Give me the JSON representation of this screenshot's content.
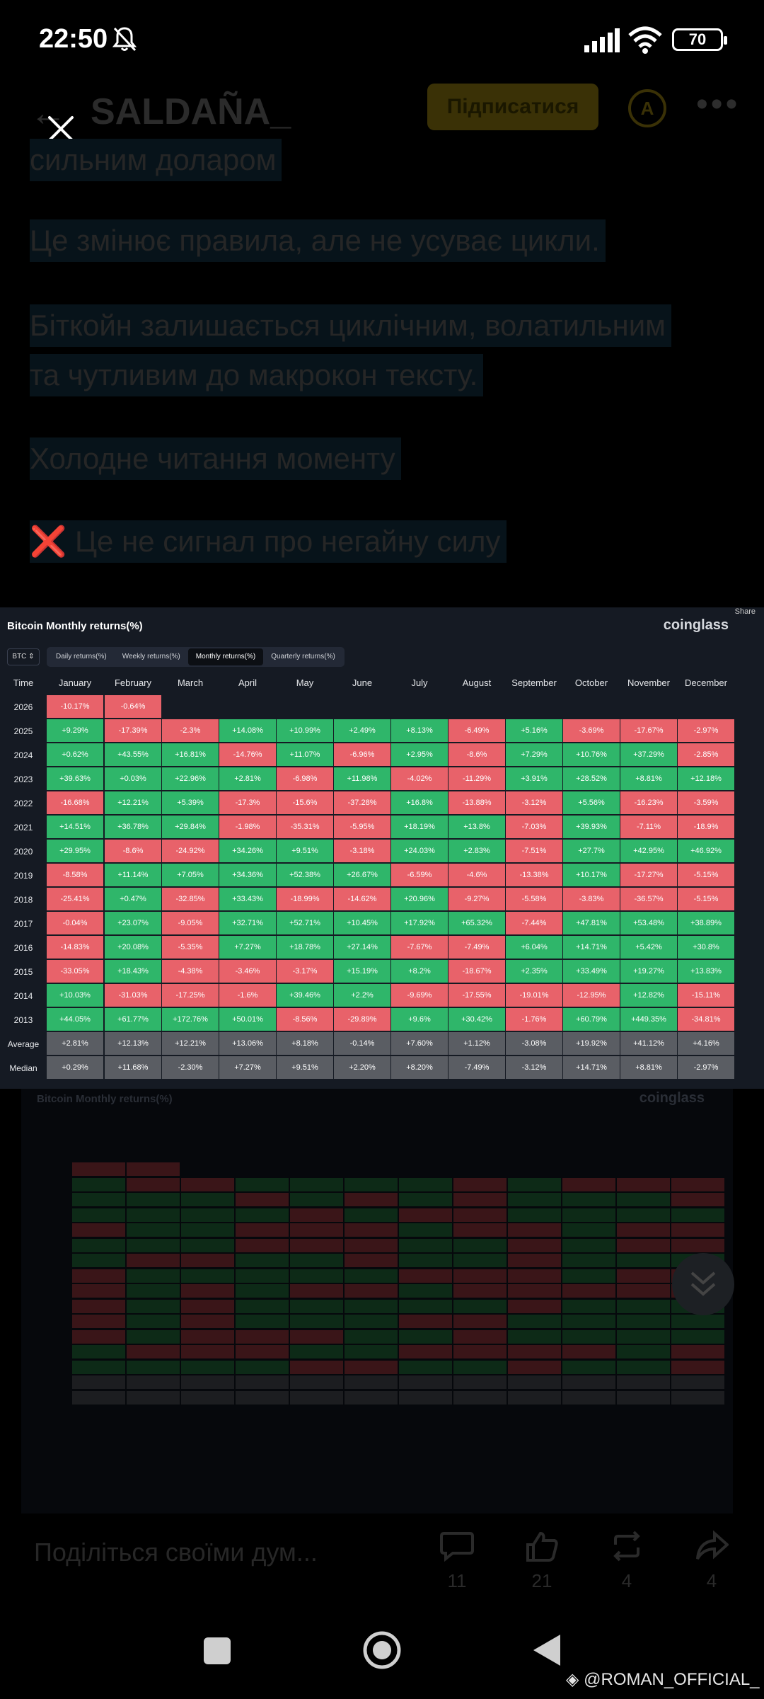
{
  "status": {
    "time": "22:50",
    "battery": "70"
  },
  "header": {
    "author": "SALDAÑA_",
    "subscribe_label": "Підписатися"
  },
  "article_lines": [
    "сильним доларом",
    "Це змінює правила, але не усуває цикли.",
    "Біткойн залишається циклічним, волатильним",
    "та чутливим до макрокон тексту.",
    "Холодне читання моменту",
    "❌ Це не сигнал про негайну силу"
  ],
  "table": {
    "share_label": "Share",
    "title": "Bitcoin Monthly returns(%)",
    "logo": "coinglass",
    "asset": "BTC",
    "tabs": [
      {
        "label": "Daily returns(%)",
        "active": false
      },
      {
        "label": "Weekly returns(%)",
        "active": false
      },
      {
        "label": "Monthly returns(%)",
        "active": true
      },
      {
        "label": "Quarterly returns(%)",
        "active": false
      }
    ],
    "columns": [
      "Time",
      "January",
      "February",
      "March",
      "April",
      "May",
      "June",
      "July",
      "August",
      "September",
      "October",
      "November",
      "December"
    ],
    "rows": [
      {
        "label": "2026",
        "values": [
          "-10.17%",
          "-0.64%"
        ]
      },
      {
        "label": "2025",
        "values": [
          "+9.29%",
          "-17.39%",
          "-2.3%",
          "+14.08%",
          "+10.99%",
          "+2.49%",
          "+8.13%",
          "-6.49%",
          "+5.16%",
          "-3.69%",
          "-17.67%",
          "-2.97%"
        ]
      },
      {
        "label": "2024",
        "values": [
          "+0.62%",
          "+43.55%",
          "+16.81%",
          "-14.76%",
          "+11.07%",
          "-6.96%",
          "+2.95%",
          "-8.6%",
          "+7.29%",
          "+10.76%",
          "+37.29%",
          "-2.85%"
        ]
      },
      {
        "label": "2023",
        "values": [
          "+39.63%",
          "+0.03%",
          "+22.96%",
          "+2.81%",
          "-6.98%",
          "+11.98%",
          "-4.02%",
          "-11.29%",
          "+3.91%",
          "+28.52%",
          "+8.81%",
          "+12.18%"
        ]
      },
      {
        "label": "2022",
        "values": [
          "-16.68%",
          "+12.21%",
          "+5.39%",
          "-17.3%",
          "-15.6%",
          "-37.28%",
          "+16.8%",
          "-13.88%",
          "-3.12%",
          "+5.56%",
          "-16.23%",
          "-3.59%"
        ]
      },
      {
        "label": "2021",
        "values": [
          "+14.51%",
          "+36.78%",
          "+29.84%",
          "-1.98%",
          "-35.31%",
          "-5.95%",
          "+18.19%",
          "+13.8%",
          "-7.03%",
          "+39.93%",
          "-7.11%",
          "-18.9%"
        ]
      },
      {
        "label": "2020",
        "values": [
          "+29.95%",
          "-8.6%",
          "-24.92%",
          "+34.26%",
          "+9.51%",
          "-3.18%",
          "+24.03%",
          "+2.83%",
          "-7.51%",
          "+27.7%",
          "+42.95%",
          "+46.92%"
        ]
      },
      {
        "label": "2019",
        "values": [
          "-8.58%",
          "+11.14%",
          "+7.05%",
          "+34.36%",
          "+52.38%",
          "+26.67%",
          "-6.59%",
          "-4.6%",
          "-13.38%",
          "+10.17%",
          "-17.27%",
          "-5.15%"
        ]
      },
      {
        "label": "2018",
        "values": [
          "-25.41%",
          "+0.47%",
          "-32.85%",
          "+33.43%",
          "-18.99%",
          "-14.62%",
          "+20.96%",
          "-9.27%",
          "-5.58%",
          "-3.83%",
          "-36.57%",
          "-5.15%"
        ]
      },
      {
        "label": "2017",
        "values": [
          "-0.04%",
          "+23.07%",
          "-9.05%",
          "+32.71%",
          "+52.71%",
          "+10.45%",
          "+17.92%",
          "+65.32%",
          "-7.44%",
          "+47.81%",
          "+53.48%",
          "+38.89%"
        ]
      },
      {
        "label": "2016",
        "values": [
          "-14.83%",
          "+20.08%",
          "-5.35%",
          "+7.27%",
          "+18.78%",
          "+27.14%",
          "-7.67%",
          "-7.49%",
          "+6.04%",
          "+14.71%",
          "+5.42%",
          "+30.8%"
        ]
      },
      {
        "label": "2015",
        "values": [
          "-33.05%",
          "+18.43%",
          "-4.38%",
          "-3.46%",
          "-3.17%",
          "+15.19%",
          "+8.2%",
          "-18.67%",
          "+2.35%",
          "+33.49%",
          "+19.27%",
          "+13.83%"
        ]
      },
      {
        "label": "2014",
        "values": [
          "+10.03%",
          "-31.03%",
          "-17.25%",
          "-1.6%",
          "+39.46%",
          "+2.2%",
          "-9.69%",
          "-17.55%",
          "-19.01%",
          "-12.95%",
          "+12.82%",
          "-15.11%"
        ]
      },
      {
        "label": "2013",
        "values": [
          "+44.05%",
          "+61.77%",
          "+172.76%",
          "+50.01%",
          "-8.56%",
          "-29.89%",
          "+9.6%",
          "+30.42%",
          "-1.76%",
          "+60.79%",
          "+449.35%",
          "-34.81%"
        ]
      }
    ],
    "stats": [
      {
        "label": "Average",
        "values": [
          "+2.81%",
          "+12.13%",
          "+12.21%",
          "+13.06%",
          "+8.18%",
          "-0.14%",
          "+7.60%",
          "+1.12%",
          "-3.08%",
          "+19.92%",
          "+41.12%",
          "+4.16%"
        ]
      },
      {
        "label": "Median",
        "values": [
          "+0.29%",
          "+11.68%",
          "-2.30%",
          "+7.27%",
          "+9.51%",
          "+2.20%",
          "+8.20%",
          "-7.49%",
          "-3.12%",
          "+14.71%",
          "+8.81%",
          "-2.97%"
        ]
      }
    ],
    "colors": {
      "positive": "#2fb66a",
      "negative": "#e8626a",
      "stat": "#5a5d63"
    }
  },
  "footer": {
    "comment_placeholder": "Поділіться своїми дум...",
    "comments": "11",
    "likes": "21",
    "reposts": "4",
    "shares": "4"
  },
  "watermark": "@ROMAN_OFFICIAL_"
}
